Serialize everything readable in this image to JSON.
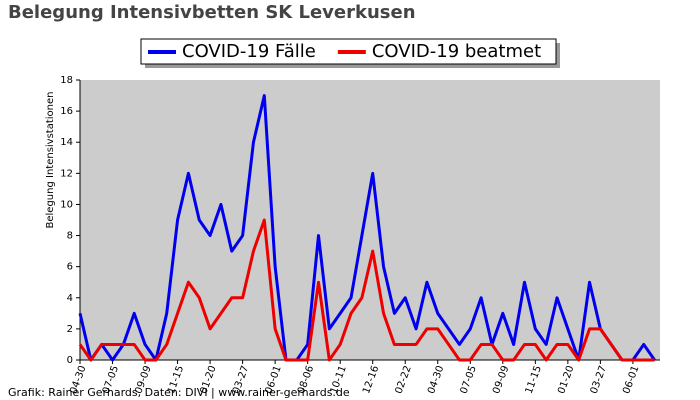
{
  "chart_data": {
    "type": "line",
    "title": "Belegung Intensivbetten SK Leverkusen",
    "y_label": "Belegung Intensivstationen",
    "footer": "Grafik: Rainer Gerhards, Daten: DIVI | www.rainer-gerhards.de",
    "categories": [
      "04-30",
      null,
      null,
      "07-05",
      null,
      null,
      "09-09",
      null,
      null,
      "11-15",
      null,
      null,
      "01-20",
      null,
      null,
      "03-27",
      null,
      null,
      "06-01",
      null,
      null,
      "08-06",
      null,
      null,
      "10-11",
      null,
      null,
      "12-16",
      null,
      null,
      "02-22",
      null,
      null,
      "04-30",
      null,
      null,
      "07-05",
      null,
      null,
      "09-09",
      null,
      null,
      "11-15",
      null,
      null,
      "01-20",
      null,
      null,
      "03-27",
      null,
      null,
      "06-01",
      null,
      null
    ],
    "series": [
      {
        "name": "COVID-19 Fälle",
        "color": "#0000ee",
        "values": [
          3,
          0,
          1,
          0,
          1,
          3,
          1,
          0,
          3,
          9,
          12,
          9,
          8,
          10,
          7,
          8,
          14,
          17,
          6,
          0,
          0,
          1,
          8,
          2,
          3,
          4,
          8,
          12,
          6,
          3,
          4,
          2,
          5,
          3,
          2,
          1,
          2,
          4,
          1,
          3,
          1,
          5,
          2,
          1,
          4,
          2,
          0,
          5,
          2,
          1,
          0,
          0,
          1,
          0
        ]
      },
      {
        "name": "COVID-19 beatmet",
        "color": "#ee0000",
        "values": [
          1,
          0,
          1,
          1,
          1,
          1,
          0,
          0,
          1,
          3,
          5,
          4,
          2,
          3,
          4,
          4,
          7,
          9,
          2,
          0,
          0,
          0,
          5,
          0,
          1,
          3,
          4,
          7,
          3,
          1,
          1,
          1,
          2,
          2,
          1,
          0,
          0,
          1,
          1,
          0,
          0,
          1,
          1,
          0,
          1,
          1,
          0,
          2,
          2,
          1,
          0,
          0,
          0,
          0
        ]
      }
    ],
    "ylim": [
      0,
      18
    ],
    "yticks": [
      0,
      2,
      4,
      6,
      8,
      10,
      12,
      14,
      16,
      18
    ],
    "plot_background": "#cccccc"
  }
}
